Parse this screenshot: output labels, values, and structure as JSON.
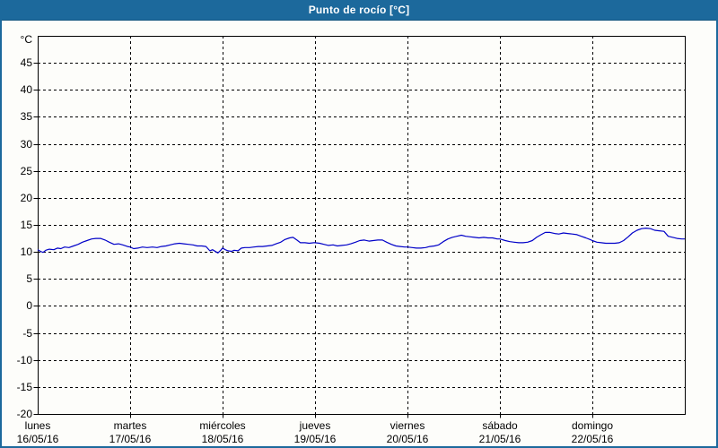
{
  "window": {
    "title": "Punto de rocío [°C]"
  },
  "colors": {
    "titlebar_bg": "#1c699c",
    "titlebar_text": "#ffffff",
    "frame_border": "#1c699c",
    "plot_bg": "#fdfdfa",
    "grid": "#000000",
    "line": "#0000c8"
  },
  "chart_data": {
    "type": "line",
    "title": "Punto de rocío [°C]",
    "grid": "dashed",
    "legend_position": "none",
    "y_axis": {
      "unit": "°C",
      "range": [
        -20,
        50
      ],
      "tick_step": 5,
      "ticks": [
        45,
        40,
        35,
        30,
        25,
        20,
        15,
        10,
        5,
        0,
        -5,
        -10,
        -15,
        -20
      ]
    },
    "x_axis": {
      "range_hours": [
        0,
        168
      ],
      "gridline_hours": [
        24,
        48,
        72,
        96,
        120,
        144
      ],
      "categories": [
        {
          "day": "lunes",
          "date": "16/05/16"
        },
        {
          "day": "martes",
          "date": "17/05/16"
        },
        {
          "day": "miércoles",
          "date": "18/05/16"
        },
        {
          "day": "jueves",
          "date": "19/05/16"
        },
        {
          "day": "viernes",
          "date": "20/05/16"
        },
        {
          "day": "sábado",
          "date": "21/05/16"
        },
        {
          "day": "domingo",
          "date": "22/05/16"
        }
      ]
    },
    "series": [
      {
        "name": "Punto de rocío",
        "color": "#0000c8",
        "points": [
          [
            0,
            10.4
          ],
          [
            0.7,
            10.1
          ],
          [
            1.4,
            9.9
          ],
          [
            2.1,
            10.3
          ],
          [
            3,
            10.5
          ],
          [
            4.2,
            10.4
          ],
          [
            5.1,
            10.7
          ],
          [
            6,
            10.6
          ],
          [
            7,
            10.9
          ],
          [
            8.1,
            10.8
          ],
          [
            9.3,
            11.1
          ],
          [
            10.5,
            11.4
          ],
          [
            11.6,
            11.8
          ],
          [
            12.8,
            12.1
          ],
          [
            14,
            12.4
          ],
          [
            15.1,
            12.5
          ],
          [
            16.3,
            12.5
          ],
          [
            17.5,
            12.2
          ],
          [
            18.6,
            11.8
          ],
          [
            19.8,
            11.4
          ],
          [
            21,
            11.5
          ],
          [
            22.1,
            11.3
          ],
          [
            23.3,
            11.0
          ],
          [
            24,
            10.9
          ],
          [
            24.9,
            10.6
          ],
          [
            26,
            10.7
          ],
          [
            27.2,
            10.9
          ],
          [
            28.4,
            10.8
          ],
          [
            29.8,
            10.9
          ],
          [
            31,
            10.8
          ],
          [
            32.1,
            11.0
          ],
          [
            33.3,
            11.1
          ],
          [
            34.4,
            11.3
          ],
          [
            35.6,
            11.5
          ],
          [
            36.8,
            11.6
          ],
          [
            37.9,
            11.5
          ],
          [
            39.1,
            11.4
          ],
          [
            40.3,
            11.3
          ],
          [
            41.4,
            11.1
          ],
          [
            42.6,
            11.1
          ],
          [
            43.7,
            11.0
          ],
          [
            44.7,
            10.2
          ],
          [
            45.4,
            10.4
          ],
          [
            46.8,
            9.8
          ],
          [
            47.5,
            10.3
          ],
          [
            48,
            10.7
          ],
          [
            48.7,
            10.4
          ],
          [
            49.4,
            10.2
          ],
          [
            50.3,
            10.1
          ],
          [
            51,
            10.3
          ],
          [
            52,
            10.2
          ],
          [
            52.9,
            10.7
          ],
          [
            53.8,
            10.8
          ],
          [
            55,
            10.8
          ],
          [
            56.1,
            10.9
          ],
          [
            57.3,
            11.0
          ],
          [
            58.4,
            11.0
          ],
          [
            59.6,
            11.1
          ],
          [
            60.8,
            11.2
          ],
          [
            61.9,
            11.5
          ],
          [
            63.1,
            11.8
          ],
          [
            64.2,
            12.3
          ],
          [
            65.4,
            12.6
          ],
          [
            66.3,
            12.7
          ],
          [
            67.3,
            12.2
          ],
          [
            68.2,
            11.7
          ],
          [
            69.4,
            11.7
          ],
          [
            70.5,
            11.6
          ],
          [
            71.7,
            11.7
          ],
          [
            72,
            11.7
          ],
          [
            73.2,
            11.6
          ],
          [
            74.3,
            11.4
          ],
          [
            75.5,
            11.2
          ],
          [
            76.7,
            11.3
          ],
          [
            77.8,
            11.1
          ],
          [
            79,
            11.2
          ],
          [
            80.2,
            11.3
          ],
          [
            81.3,
            11.5
          ],
          [
            82.5,
            11.8
          ],
          [
            83.6,
            12.1
          ],
          [
            84.8,
            12.2
          ],
          [
            86,
            12.0
          ],
          [
            87.1,
            12.1
          ],
          [
            88.3,
            12.2
          ],
          [
            89.5,
            12.2
          ],
          [
            90.6,
            11.8
          ],
          [
            91.8,
            11.4
          ],
          [
            93,
            11.1
          ],
          [
            94.1,
            11.0
          ],
          [
            95.3,
            10.9
          ],
          [
            96,
            10.9
          ],
          [
            97.2,
            10.8
          ],
          [
            98.3,
            10.7
          ],
          [
            99.5,
            10.7
          ],
          [
            100.7,
            10.8
          ],
          [
            101.8,
            11.0
          ],
          [
            103,
            11.1
          ],
          [
            104.1,
            11.3
          ],
          [
            105.3,
            11.9
          ],
          [
            106.5,
            12.4
          ],
          [
            107.6,
            12.7
          ],
          [
            108.8,
            12.9
          ],
          [
            110,
            13.1
          ],
          [
            111.1,
            12.9
          ],
          [
            112.3,
            12.8
          ],
          [
            113.4,
            12.7
          ],
          [
            114.6,
            12.6
          ],
          [
            115.8,
            12.7
          ],
          [
            116.9,
            12.6
          ],
          [
            118.1,
            12.6
          ],
          [
            119.3,
            12.4
          ],
          [
            120,
            12.4
          ],
          [
            121.4,
            12.1
          ],
          [
            122.6,
            11.9
          ],
          [
            123.7,
            11.8
          ],
          [
            124.9,
            11.7
          ],
          [
            126,
            11.7
          ],
          [
            127.2,
            11.8
          ],
          [
            128.4,
            12.1
          ],
          [
            129.5,
            12.7
          ],
          [
            130.7,
            13.2
          ],
          [
            131.8,
            13.6
          ],
          [
            133,
            13.6
          ],
          [
            134.2,
            13.4
          ],
          [
            135.3,
            13.3
          ],
          [
            136.5,
            13.5
          ],
          [
            137.6,
            13.4
          ],
          [
            138.8,
            13.3
          ],
          [
            140,
            13.2
          ],
          [
            141.1,
            12.9
          ],
          [
            142.3,
            12.6
          ],
          [
            143.4,
            12.3
          ],
          [
            144,
            12.1
          ],
          [
            145.2,
            11.8
          ],
          [
            146.3,
            11.7
          ],
          [
            147.5,
            11.6
          ],
          [
            148.6,
            11.6
          ],
          [
            149.8,
            11.6
          ],
          [
            151,
            11.7
          ],
          [
            152.1,
            12.1
          ],
          [
            153.3,
            12.8
          ],
          [
            154.4,
            13.5
          ],
          [
            155.6,
            14.0
          ],
          [
            156.8,
            14.3
          ],
          [
            157.9,
            14.4
          ],
          [
            159.1,
            14.3
          ],
          [
            160.2,
            14.0
          ],
          [
            161.4,
            13.9
          ],
          [
            162.6,
            13.8
          ],
          [
            163.7,
            12.9
          ],
          [
            164.9,
            12.7
          ],
          [
            166,
            12.5
          ],
          [
            167.2,
            12.4
          ],
          [
            168,
            12.4
          ]
        ]
      }
    ]
  }
}
